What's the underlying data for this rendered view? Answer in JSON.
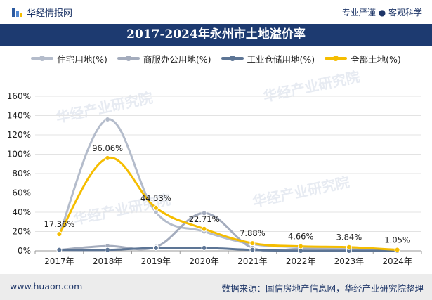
{
  "header": {
    "brand": "华经情报网",
    "tagline": "专业严谨 ● 客观科学"
  },
  "title": "2017-2024年永州市土地溢价率",
  "footer": {
    "url": "www.huaon.com",
    "source": "数据来源：国信房地产信息网，华经产业研究院整理"
  },
  "watermark": "华经产业研究院",
  "chart_data": {
    "type": "line",
    "categories": [
      "2017年",
      "2018年",
      "2019年",
      "2020年",
      "2021年",
      "2022年",
      "2023年",
      "2024年"
    ],
    "ylim": [
      0,
      160
    ],
    "yticks": [
      "0%",
      "20%",
      "40%",
      "60%",
      "80%",
      "100%",
      "120%",
      "140%",
      "160%"
    ],
    "grid": true,
    "legend_position": "top",
    "series": [
      {
        "name": "住宅用地(%)",
        "color": "#b4bccb",
        "values": [
          17,
          136,
          40,
          20,
          7,
          4,
          3,
          1
        ]
      },
      {
        "name": "商服办公用地(%)",
        "color": "#a4acbd",
        "values": [
          1,
          5,
          4,
          39,
          3,
          2,
          1,
          0
        ]
      },
      {
        "name": "工业仓储用地(%)",
        "color": "#5d7595",
        "values": [
          1,
          1,
          3,
          3,
          1,
          0,
          0,
          0
        ]
      },
      {
        "name": "全部土地(%)",
        "color": "#f5bd00",
        "values": [
          17.36,
          96.06,
          44.53,
          22.71,
          7.88,
          4.66,
          3.84,
          1.05
        ],
        "labels": [
          "17.36%",
          "96.06%",
          "44.53%",
          "22.71%",
          "7.88%",
          "4.66%",
          "3.84%",
          "1.05%"
        ]
      }
    ]
  }
}
